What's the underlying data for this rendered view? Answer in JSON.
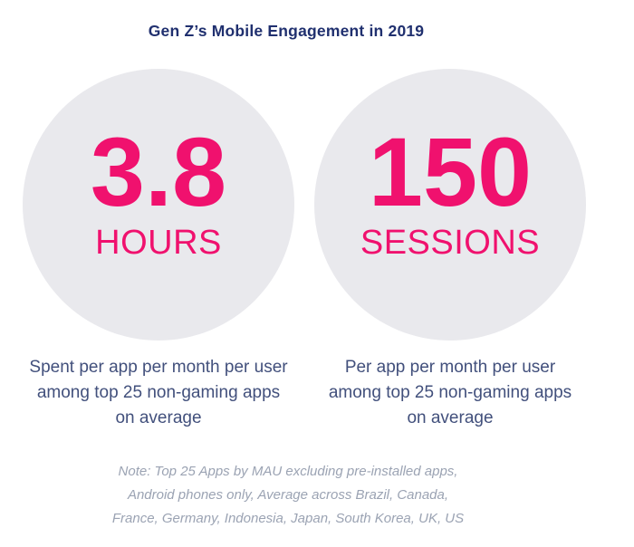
{
  "title": "Gen Z’s Mobile Engagement in 2019",
  "colors": {
    "accent_pink": "#f0116e",
    "title_navy": "#20306f",
    "caption_navy": "#42507c",
    "circle_gray": "#e9e9ed",
    "note_gray": "#9ba3b3",
    "background": "#ffffff"
  },
  "chart_data": {
    "type": "table",
    "title": "Gen Z’s Mobile Engagement in 2019",
    "categories": [
      "HOURS",
      "SESSIONS"
    ],
    "values": [
      3.8,
      150
    ],
    "stats": [
      {
        "value": "3.8",
        "unit": "HOURS",
        "description": "Spent per app per month per user\namong top 25 non-gaming apps\non average"
      },
      {
        "value": "150",
        "unit": "SESSIONS",
        "description": "Per app per month per user\namong top 25 non-gaming apps\non average"
      }
    ],
    "note": "Note: Top 25 Apps by MAU excluding pre-installed apps,\nAndroid phones only, Average across Brazil, Canada,\nFrance, Germany, Indonesia, Japan, South Korea, UK, US",
    "legend": "none",
    "grid": "off"
  }
}
